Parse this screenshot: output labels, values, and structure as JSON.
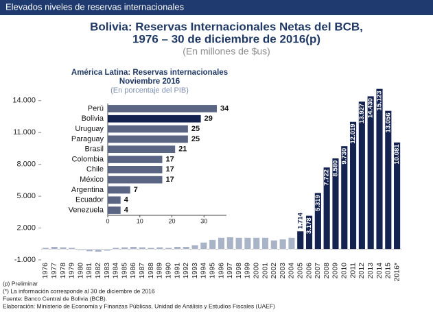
{
  "header": "Elevados niveles de reservas internacionales",
  "notes": [
    "(p) Preliminar",
    "(*) La información corresponde al 30 de diciembre de 2016",
    "Fuente: Banco Central de Bolivia (BCB).",
    "Elaboración: Ministerio de Economía y Finanzas Públicas, Unidad de Análisis y Estudios Fiscales (UAEF)"
  ],
  "chart_data": [
    {
      "type": "bar",
      "title": "Bolivia: Reservas Internacionales Netas del BCB,",
      "title_line2": "1976 – 30 de diciembre de 2016(p)",
      "subtitle": "(En millones de $us)",
      "categories": [
        "1976",
        "1977",
        "1978",
        "1979",
        "1980",
        "1981",
        "1982",
        "1983",
        "1984",
        "1985",
        "1986",
        "1987",
        "1988",
        "1989",
        "1990",
        "1991",
        "1992",
        "1993",
        "1994",
        "1995",
        "1996",
        "1997",
        "1998",
        "1999",
        "2000",
        "2001",
        "2002",
        "2003",
        "2004",
        "2005",
        "2006",
        "2007",
        "2008",
        "2009",
        "2010",
        "2011",
        "2012",
        "2013",
        "2014",
        "2015",
        "2016*"
      ],
      "values": [
        150,
        250,
        200,
        150,
        -100,
        -200,
        -250,
        -150,
        150,
        200,
        250,
        200,
        150,
        200,
        150,
        250,
        250,
        400,
        650,
        900,
        1100,
        1150,
        1100,
        1100,
        1100,
        1100,
        850,
        950,
        1100,
        1714,
        3178,
        5319,
        7722,
        8580,
        9730,
        12019,
        13927,
        14430,
        15123,
        13056,
        10081
      ],
      "value_labels": [
        null,
        null,
        null,
        null,
        null,
        null,
        null,
        null,
        null,
        null,
        null,
        null,
        null,
        null,
        null,
        null,
        null,
        null,
        null,
        null,
        null,
        null,
        null,
        null,
        null,
        null,
        null,
        null,
        null,
        "1.714",
        "3.178",
        "5.319",
        "7.722",
        "8.580",
        "9.730",
        "12.019",
        "13.927",
        "14.430",
        "15.123",
        "13.056",
        "10.081"
      ],
      "colors": [
        "#a9b4c8",
        "#a9b4c8",
        "#a9b4c8",
        "#a9b4c8",
        "#a9b4c8",
        "#a9b4c8",
        "#a9b4c8",
        "#a9b4c8",
        "#a9b4c8",
        "#a9b4c8",
        "#a9b4c8",
        "#a9b4c8",
        "#a9b4c8",
        "#a9b4c8",
        "#a9b4c8",
        "#a9b4c8",
        "#a9b4c8",
        "#a9b4c8",
        "#a9b4c8",
        "#a9b4c8",
        "#a9b4c8",
        "#a9b4c8",
        "#a9b4c8",
        "#a9b4c8",
        "#a9b4c8",
        "#a9b4c8",
        "#a9b4c8",
        "#a9b4c8",
        "#a9b4c8",
        "#14224f",
        "#14224f",
        "#14224f",
        "#14224f",
        "#14224f",
        "#14224f",
        "#14224f",
        "#14224f",
        "#14224f",
        "#14224f",
        "#14224f",
        "#14224f"
      ],
      "ylim": [
        -1000,
        15600
      ],
      "yticks": [
        {
          "value": -1000,
          "label": "-1.000"
        },
        {
          "value": 2000,
          "label": "2.000"
        },
        {
          "value": 5000,
          "label": "5.000"
        },
        {
          "value": 8000,
          "label": "8.000"
        },
        {
          "value": 11000,
          "label": "11.000"
        },
        {
          "value": 14000,
          "label": "14.000"
        }
      ]
    },
    {
      "type": "hbar",
      "title": "América Latina: Reservas internacionales",
      "title_line2": "Noviembre 2016",
      "subtitle": "(En porcentaje del PIB)",
      "categories": [
        "Perú",
        "Bolivia",
        "Uruguay",
        "Paraguay",
        "Brasil",
        "Colombia",
        "Chile",
        "México",
        "Argentina",
        "Ecuador",
        "Venezuela"
      ],
      "values": [
        34,
        29,
        25,
        25,
        21,
        17,
        17,
        17,
        7,
        4,
        4
      ],
      "colors": [
        "#5a6584",
        "#14224f",
        "#5a6584",
        "#5a6584",
        "#5a6584",
        "#5a6584",
        "#5a6584",
        "#5a6584",
        "#5a6584",
        "#5a6584",
        "#5a6584"
      ],
      "xlim": [
        0,
        37
      ],
      "xticks": [
        0,
        10,
        20,
        30
      ]
    }
  ]
}
